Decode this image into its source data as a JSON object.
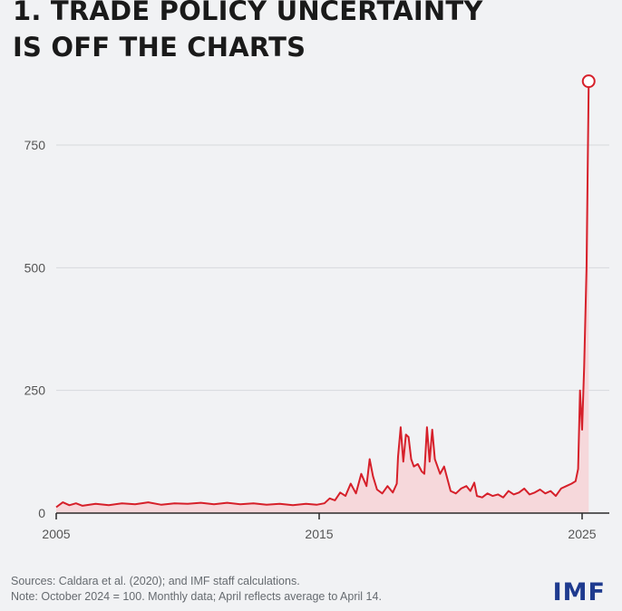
{
  "header": {
    "title_line1": "1. TRADE POLICY UNCERTAINTY",
    "title_line2": "IS OFF THE CHARTS"
  },
  "footer": {
    "sources": "Sources: Caldara et al. (2020); and IMF staff calculations.",
    "note": "Note: October 2024 = 100. Monthly data; April reflects average to April 14.",
    "logo": "IMF"
  },
  "colors": {
    "line": "#d6202a",
    "area": "#f6d5d8",
    "grid": "#d7d9dd",
    "axis": "#2b2b2b",
    "tick_text": "#555555",
    "logo": "#1f3b8f"
  },
  "chart_data": {
    "type": "area",
    "title": "1. TRADE POLICY UNCERTAINTY IS OFF THE CHARTS",
    "xlabel": "",
    "ylabel": "",
    "xlim": [
      2005,
      2025.6
    ],
    "ylim": [
      0,
      920
    ],
    "x_ticks": [
      2005,
      2015,
      2025
    ],
    "y_ticks": [
      0,
      250,
      500,
      750
    ],
    "grid": true,
    "legend": "none",
    "highlight_last_point": true,
    "series": [
      {
        "x": [
          2005.0,
          2005.25,
          2005.5,
          2005.75,
          2006.0,
          2006.5,
          2007.0,
          2007.5,
          2008.0,
          2008.5,
          2009.0,
          2009.5,
          2010.0,
          2010.5,
          2011.0,
          2011.5,
          2012.0,
          2012.5,
          2013.0,
          2013.5,
          2014.0,
          2014.5,
          2014.9,
          2015.2,
          2015.4,
          2015.6,
          2015.8,
          2016.0,
          2016.2,
          2016.4,
          2016.6,
          2016.8,
          2016.92,
          2017.05,
          2017.2,
          2017.4,
          2017.6,
          2017.8,
          2017.95,
          2018.0,
          2018.1,
          2018.2,
          2018.3,
          2018.4,
          2018.5,
          2018.6,
          2018.75,
          2018.9,
          2019.0,
          2019.1,
          2019.2,
          2019.3,
          2019.4,
          2019.5,
          2019.6,
          2019.75,
          2019.9,
          2020.0,
          2020.2,
          2020.4,
          2020.6,
          2020.75,
          2020.9,
          2021.0,
          2021.2,
          2021.4,
          2021.6,
          2021.8,
          2022.0,
          2022.2,
          2022.4,
          2022.6,
          2022.8,
          2023.0,
          2023.2,
          2023.4,
          2023.6,
          2023.8,
          2024.0,
          2024.2,
          2024.4,
          2024.6,
          2024.75,
          2024.85,
          2024.92,
          2025.0,
          2025.08,
          2025.17,
          2025.25
        ],
        "y": [
          12,
          22,
          16,
          20,
          15,
          19,
          16,
          20,
          18,
          22,
          17,
          20,
          19,
          21,
          18,
          21,
          18,
          20,
          17,
          19,
          16,
          19,
          17,
          20,
          30,
          26,
          42,
          35,
          60,
          40,
          80,
          55,
          110,
          75,
          48,
          40,
          55,
          42,
          60,
          115,
          175,
          105,
          160,
          155,
          110,
          95,
          100,
          85,
          80,
          175,
          105,
          170,
          110,
          95,
          80,
          95,
          65,
          45,
          40,
          50,
          55,
          45,
          62,
          35,
          32,
          40,
          35,
          38,
          32,
          45,
          38,
          42,
          50,
          38,
          42,
          48,
          40,
          45,
          35,
          50,
          55,
          60,
          65,
          90,
          250,
          170,
          300,
          500,
          880
        ]
      }
    ]
  }
}
